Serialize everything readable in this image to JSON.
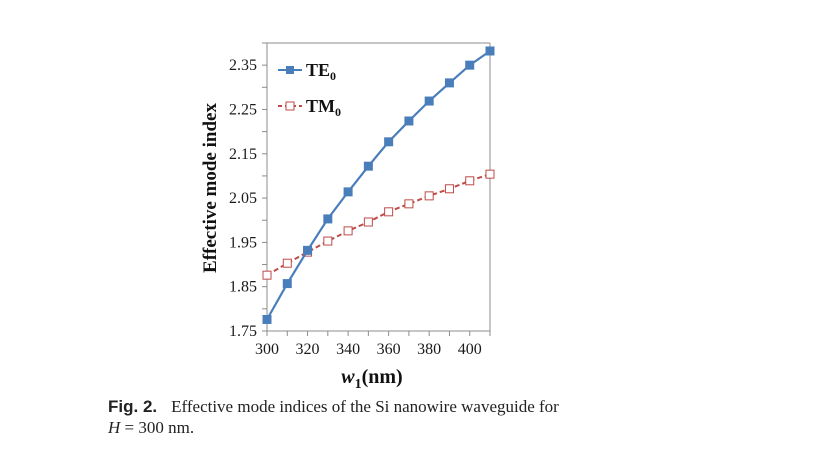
{
  "chart_data": {
    "type": "line",
    "title": "",
    "xlabel": "w",
    "xlabel_sub": "1",
    "xlabel_unit": "(nm)",
    "ylabel": "Effective mode index",
    "xlim": [
      300,
      410
    ],
    "ylim": [
      1.75,
      2.4
    ],
    "x_ticks": [
      300,
      320,
      340,
      360,
      380,
      400
    ],
    "x_minor_step": 10,
    "y_ticks": [
      "1.75",
      "1.85",
      "1.95",
      "2.05",
      "2.15",
      "2.25",
      "2.35"
    ],
    "y_minor_step": 0.05,
    "grid": false,
    "legend_position": "top-left",
    "x": [
      300,
      310,
      320,
      330,
      340,
      350,
      360,
      370,
      380,
      390,
      400,
      410
    ],
    "series": [
      {
        "name": "TE",
        "name_sub": "0",
        "color": "#4a7ebb",
        "line": "solid",
        "marker": "filled-square",
        "values": [
          1.776,
          1.857,
          1.932,
          2.003,
          2.064,
          2.122,
          2.177,
          2.224,
          2.269,
          2.31,
          2.35,
          2.382
        ]
      },
      {
        "name": "TM",
        "name_sub": "0",
        "color": "#be4b48",
        "line": "dashed",
        "marker": "open-square",
        "values": [
          1.876,
          1.903,
          1.928,
          1.953,
          1.976,
          1.996,
          2.019,
          2.037,
          2.055,
          2.071,
          2.089,
          2.104
        ]
      }
    ]
  },
  "caption": {
    "label": "Fig. 2.",
    "text_line1": "Effective mode indices of the Si nanowire waveguide for",
    "var": "H",
    "text_line2": " = 300 nm."
  }
}
